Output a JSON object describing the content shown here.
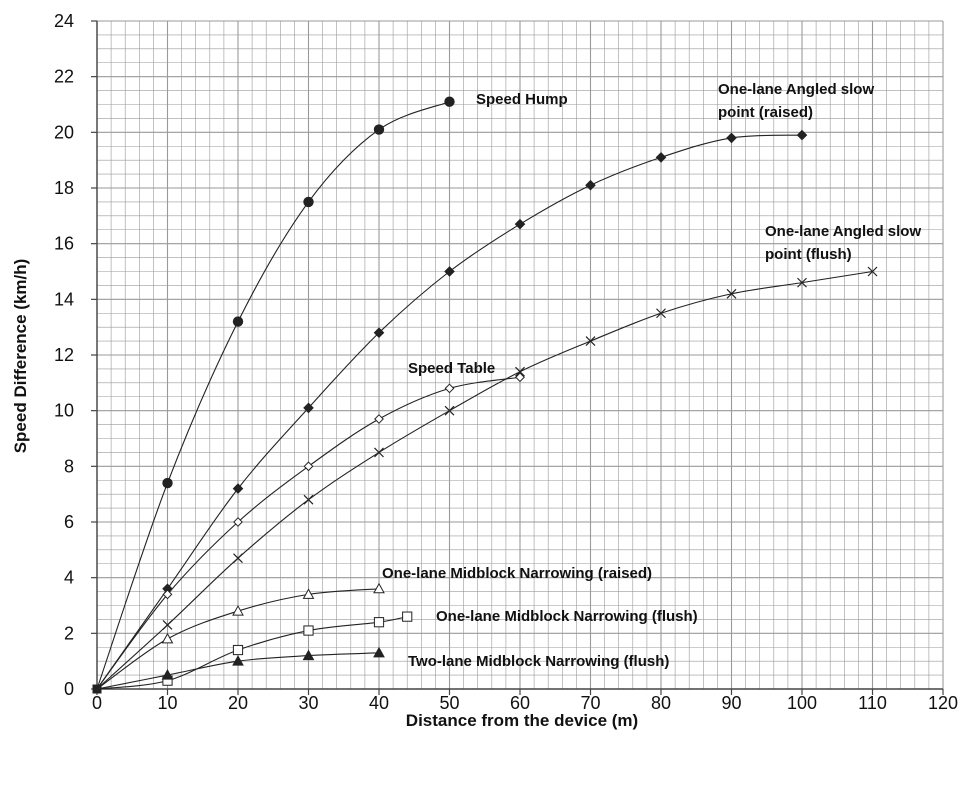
{
  "chart_data": {
    "type": "scatter",
    "title": "",
    "xlabel": "Distance from the device (m)",
    "ylabel": "Speed Difference (km/h)",
    "xlim": [
      0,
      120
    ],
    "ylim": [
      0,
      24
    ],
    "x_ticks": [
      0,
      10,
      20,
      30,
      40,
      50,
      60,
      70,
      80,
      90,
      100,
      110,
      120
    ],
    "y_ticks": [
      0,
      2,
      4,
      6,
      8,
      10,
      12,
      14,
      16,
      18,
      20,
      22,
      24
    ],
    "x_tick_labels": [
      "0",
      "10",
      "20",
      "30",
      "40",
      "50",
      "60",
      "70",
      "80",
      "90",
      "100",
      "110",
      "120"
    ],
    "y_tick_labels": [
      "0",
      "2",
      "4",
      "6",
      "8",
      "10",
      "12",
      "14",
      "16",
      "18",
      "20",
      "22",
      "24"
    ],
    "minor_grid_step": {
      "x": 2,
      "y": 0.5
    },
    "grid": true,
    "legend": "none (curves labelled directly)",
    "series": [
      {
        "name": "Speed Hump",
        "label_lines": [
          "Speed Hump"
        ],
        "marker": "circle",
        "x": [
          0,
          10,
          20,
          30,
          40,
          50
        ],
        "y": [
          0,
          7.4,
          13.2,
          17.5,
          20.1,
          21.1
        ]
      },
      {
        "name": "One-lane Angled slow point (raised)",
        "label_lines": [
          "One-lane Angled slow",
          "point (raised)"
        ],
        "marker": "diamond-filled",
        "x": [
          0,
          10,
          20,
          30,
          40,
          50,
          60,
          70,
          80,
          90,
          100
        ],
        "y": [
          0,
          3.6,
          7.2,
          10.1,
          12.8,
          15.0,
          16.7,
          18.1,
          19.1,
          19.8,
          19.9
        ]
      },
      {
        "name": "One-lane Angled slow point (flush)",
        "label_lines": [
          "One-lane Angled slow",
          "point (flush)"
        ],
        "marker": "x",
        "x": [
          0,
          10,
          20,
          30,
          40,
          50,
          60,
          70,
          80,
          90,
          100,
          110
        ],
        "y": [
          0,
          2.3,
          4.7,
          6.8,
          8.5,
          10.0,
          11.4,
          12.5,
          13.5,
          14.2,
          14.6,
          15.0
        ]
      },
      {
        "name": "Speed Table",
        "label_lines": [
          "Speed Table"
        ],
        "marker": "diamond-open",
        "x": [
          0,
          10,
          20,
          30,
          40,
          50,
          60
        ],
        "y": [
          0,
          3.4,
          6.0,
          8.0,
          9.7,
          10.8,
          11.2
        ]
      },
      {
        "name": "One-lane Midblock Narrowing (raised)",
        "label_lines": [
          "One-lane Midblock Narrowing (raised)"
        ],
        "marker": "triangle-open",
        "x": [
          0,
          10,
          20,
          30,
          40
        ],
        "y": [
          0,
          1.8,
          2.8,
          3.4,
          3.6
        ]
      },
      {
        "name": "One-lane Midblock Narrowing (flush)",
        "label_lines": [
          "One-lane Midblock Narrowing (flush)"
        ],
        "marker": "square-open",
        "x": [
          0,
          10,
          20,
          30,
          40,
          44
        ],
        "y": [
          0,
          0.3,
          1.4,
          2.1,
          2.4,
          2.6
        ]
      },
      {
        "name": "Two-lane Midblock Narrowing (flush)",
        "label_lines": [
          "Two-lane Midblock Narrowing (flush)"
        ],
        "marker": "triangle-filled",
        "x": [
          0,
          10,
          20,
          30,
          40
        ],
        "y": [
          0,
          0.5,
          1.0,
          1.2,
          1.3
        ]
      }
    ],
    "colors": {
      "line": "#222222",
      "grid": "#9a9a9a",
      "axis": "#444444"
    }
  }
}
